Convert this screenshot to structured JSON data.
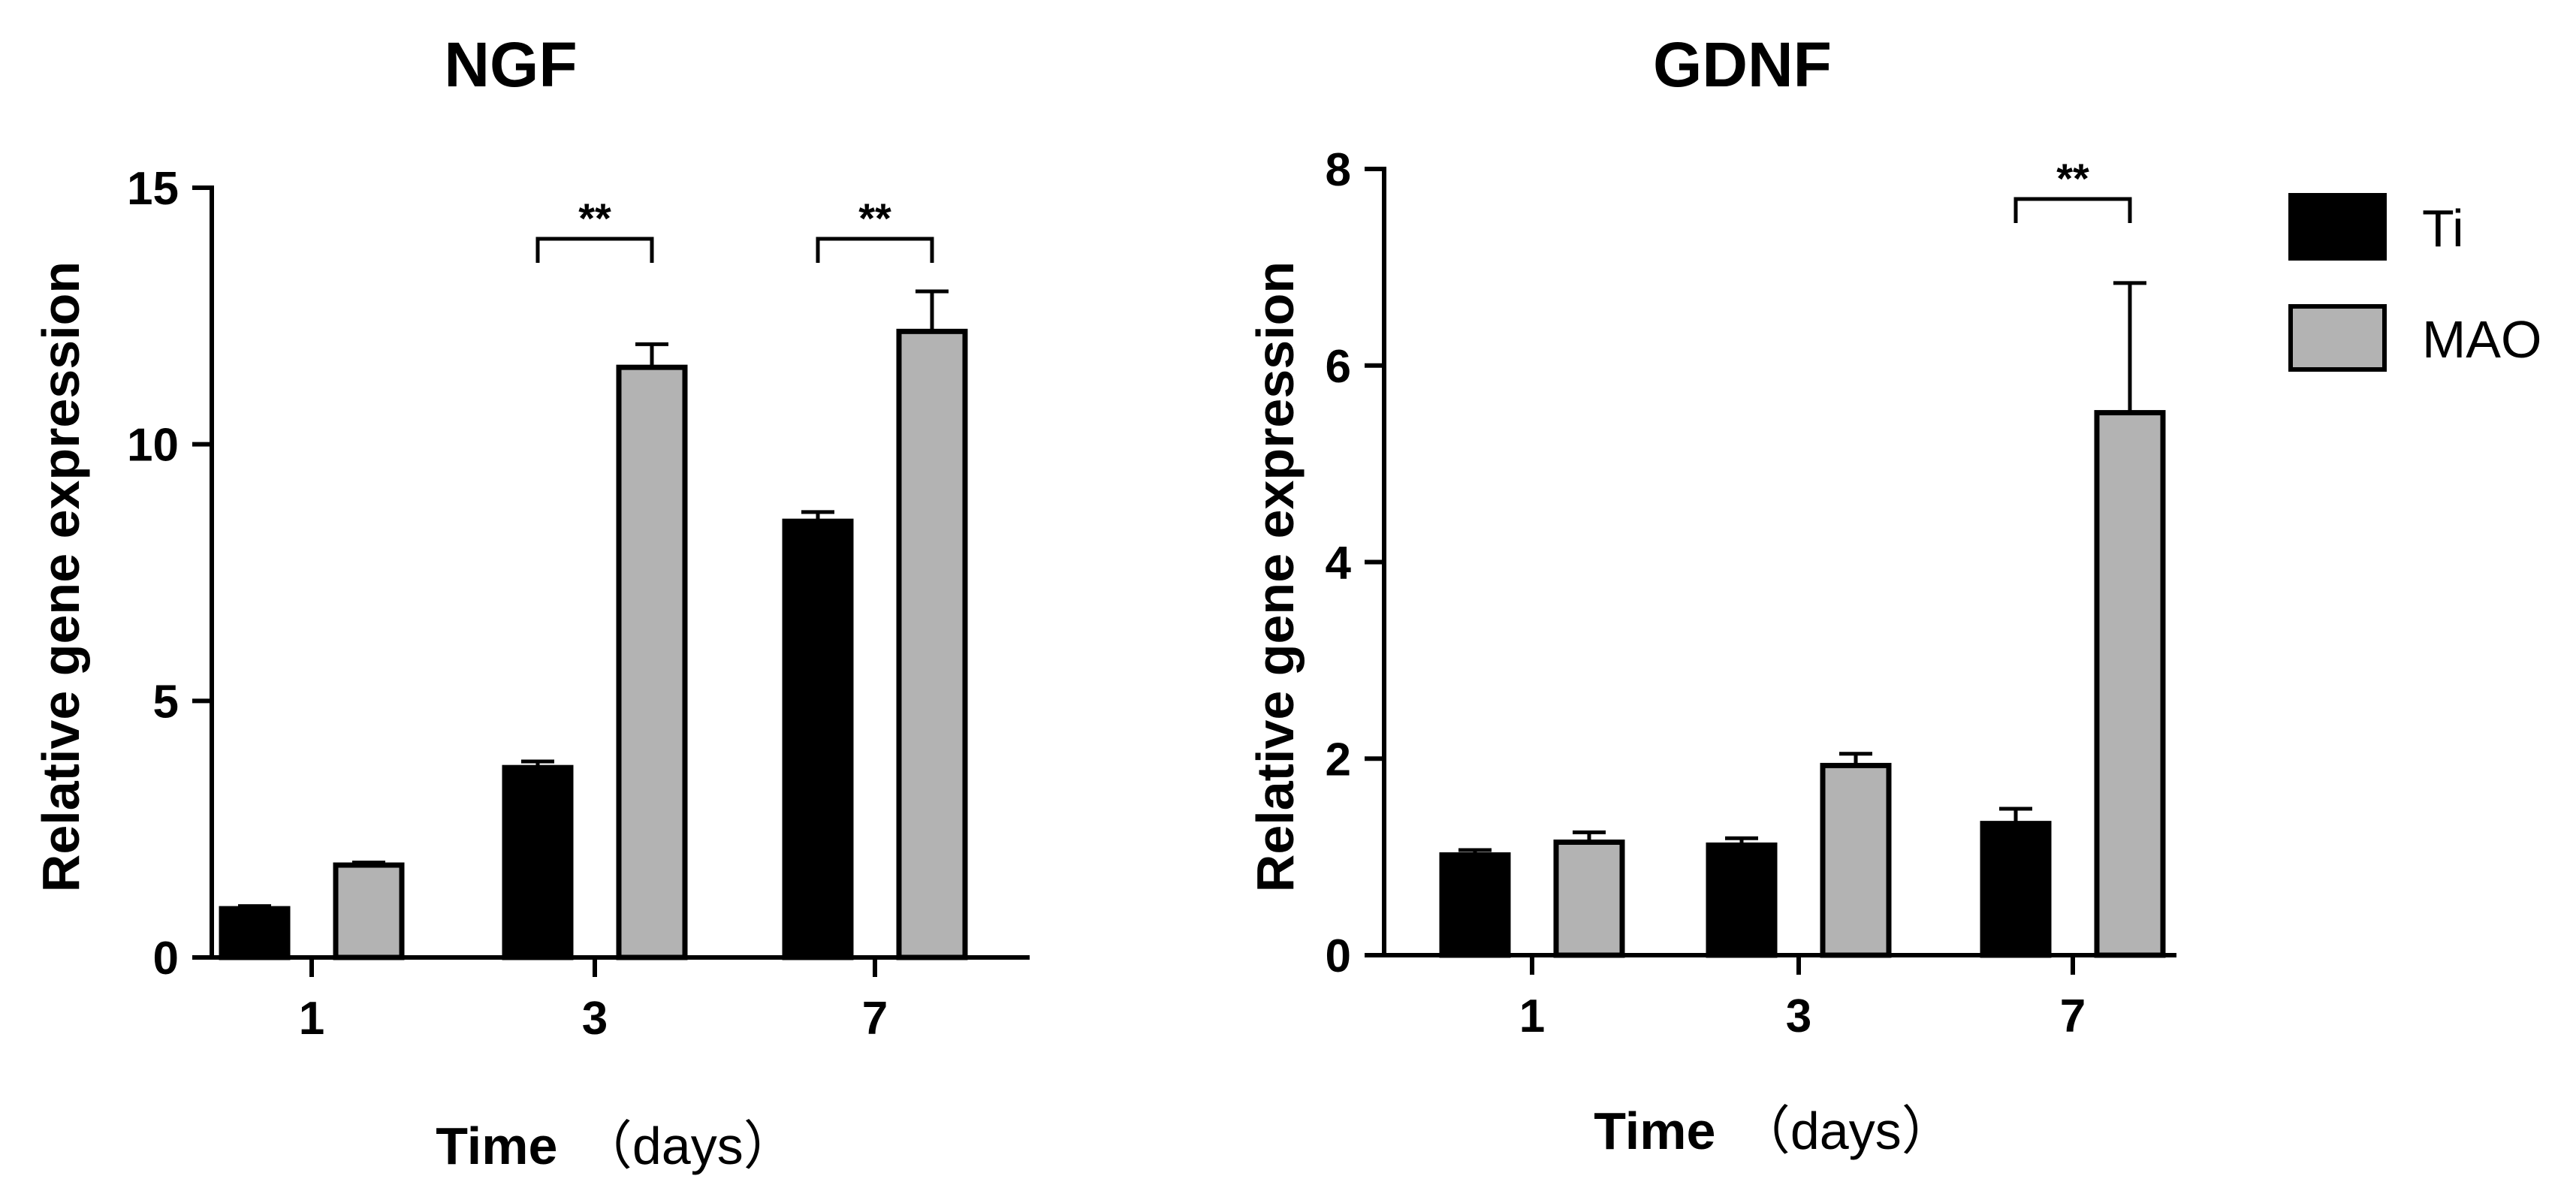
{
  "chart_data": [
    {
      "type": "bar",
      "title": "NGF",
      "xlabel_main": "Time",
      "xlabel_unit": "（days）",
      "ylabel": "Relative gene expression",
      "ylim": [
        0,
        15
      ],
      "yticks": [
        "0",
        "5",
        "10",
        "15"
      ],
      "categories": [
        "1",
        "3",
        "7"
      ],
      "series": [
        {
          "name": "Ti",
          "values": [
            0.95,
            3.7,
            8.5
          ],
          "errors": [
            0.05,
            0.12,
            0.18
          ]
        },
        {
          "name": "MAO",
          "values": [
            1.8,
            11.5,
            12.2
          ],
          "errors": [
            0.05,
            0.45,
            0.78
          ]
        }
      ],
      "significance": [
        {
          "category": "3",
          "label": "**"
        },
        {
          "category": "7",
          "label": "**"
        }
      ],
      "colors": {
        "Ti": "#000000",
        "MAO": "#b3b3b3"
      },
      "grid": false,
      "legend": "none"
    },
    {
      "type": "bar",
      "title": "GDNF",
      "xlabel_main": "Time",
      "xlabel_unit": "（days）",
      "ylabel": "Relative gene expression",
      "ylim": [
        0,
        8
      ],
      "yticks": [
        "0",
        "2",
        "4",
        "6",
        "8"
      ],
      "categories": [
        "1",
        "3",
        "7"
      ],
      "series": [
        {
          "name": "Ti",
          "values": [
            1.02,
            1.12,
            1.34
          ],
          "errors": [
            0.05,
            0.07,
            0.15
          ]
        },
        {
          "name": "MAO",
          "values": [
            1.15,
            1.93,
            5.52
          ],
          "errors": [
            0.1,
            0.12,
            1.32
          ]
        }
      ],
      "significance": [
        {
          "category": "7",
          "label": "**"
        }
      ],
      "colors": {
        "Ti": "#000000",
        "MAO": "#b3b3b3"
      },
      "grid": false,
      "legend": "right"
    }
  ],
  "legend": {
    "items": [
      {
        "name": "Ti",
        "color": "#000000"
      },
      {
        "name": "MAO",
        "color": "#b3b3b3"
      }
    ]
  }
}
